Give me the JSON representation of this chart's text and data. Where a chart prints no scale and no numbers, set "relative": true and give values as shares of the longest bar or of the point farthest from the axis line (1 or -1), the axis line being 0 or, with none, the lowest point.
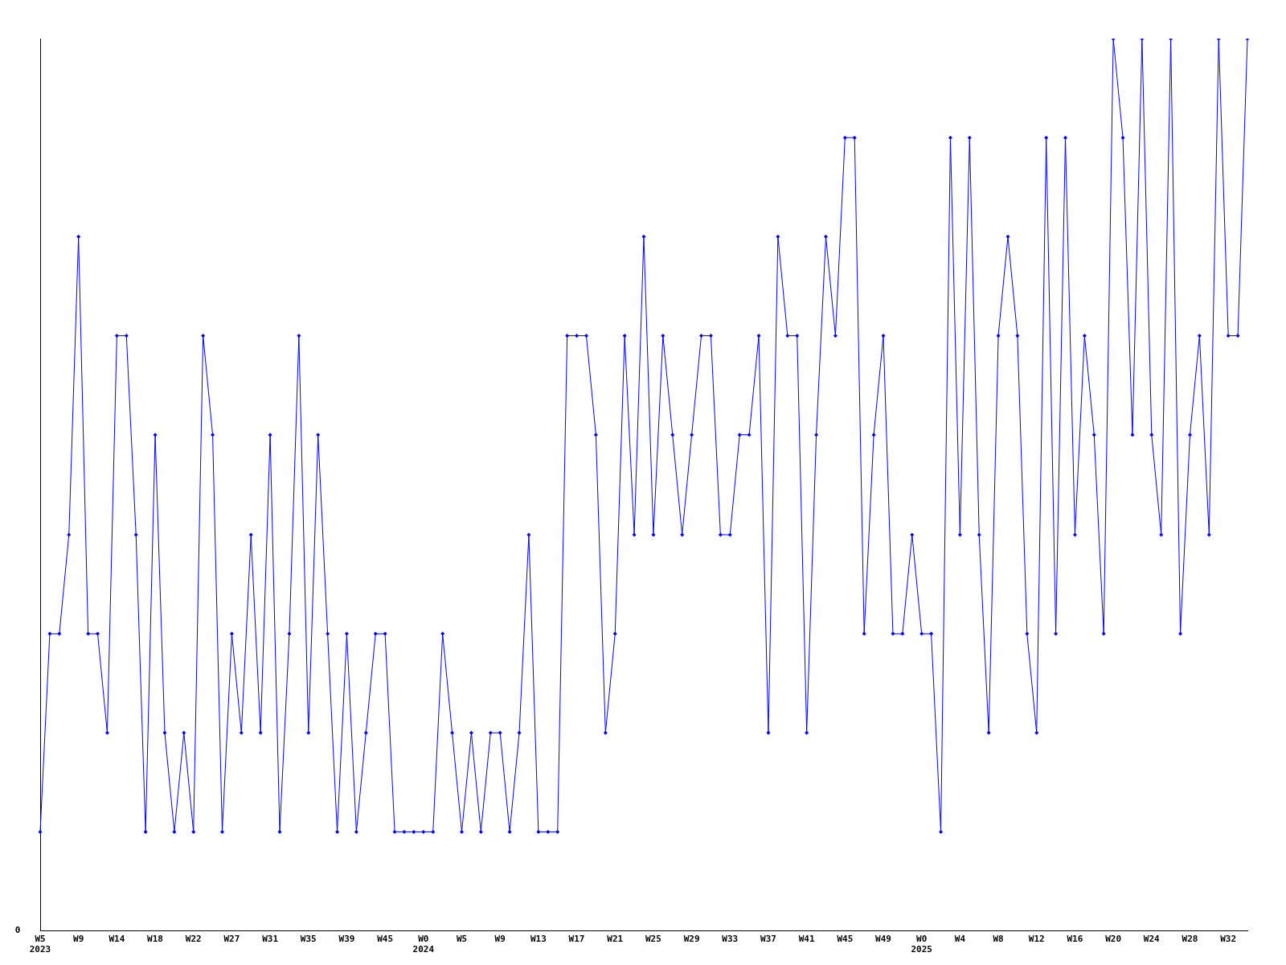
{
  "chart_data": {
    "type": "line",
    "relative": true,
    "legend": false,
    "grid": false,
    "marker": "diamond",
    "line_style": "solid",
    "annotations": [
      "0"
    ],
    "categories": [
      "W5\n2023",
      null,
      null,
      null,
      "W9",
      null,
      null,
      null,
      "W14",
      null,
      null,
      null,
      "W18",
      null,
      null,
      null,
      "W22",
      null,
      null,
      null,
      "W27",
      null,
      null,
      null,
      "W31",
      null,
      null,
      null,
      "W35",
      null,
      null,
      null,
      "W39",
      null,
      null,
      null,
      "W45",
      null,
      null,
      null,
      "W0\n2024",
      null,
      null,
      null,
      "W5",
      null,
      null,
      null,
      "W9",
      null,
      null,
      null,
      "W13",
      null,
      null,
      null,
      "W17",
      null,
      null,
      null,
      "W21",
      null,
      null,
      null,
      "W25",
      null,
      null,
      null,
      "W29",
      null,
      null,
      null,
      "W33",
      null,
      null,
      null,
      "W37",
      null,
      null,
      null,
      "W41",
      null,
      null,
      null,
      "W45",
      null,
      null,
      null,
      "W49",
      null,
      null,
      null,
      "W0\n2025",
      null,
      null,
      null,
      "W4",
      null,
      null,
      null,
      "W8",
      null,
      null,
      null,
      "W12",
      null,
      null,
      null,
      "W16",
      null,
      null,
      null,
      "W20",
      null,
      null,
      null,
      "W24",
      null,
      null,
      null,
      "W28",
      null,
      null,
      null,
      "W32",
      null,
      null
    ],
    "series": [
      {
        "color": "#0000ff",
        "values": [
          0.111,
          0.333,
          0.333,
          0.444,
          0.778,
          0.333,
          0.333,
          0.222,
          0.667,
          0.667,
          0.444,
          0.111,
          0.556,
          0.222,
          0.111,
          0.222,
          0.111,
          0.667,
          0.556,
          0.111,
          0.333,
          0.222,
          0.444,
          0.222,
          0.556,
          0.111,
          0.333,
          0.667,
          0.222,
          0.556,
          0.333,
          0.111,
          0.333,
          0.111,
          0.222,
          0.333,
          0.333,
          0.111,
          0.111,
          0.111,
          0.111,
          0.111,
          0.333,
          0.222,
          0.111,
          0.222,
          0.111,
          0.222,
          0.222,
          0.111,
          0.222,
          0.444,
          0.111,
          0.111,
          0.111,
          0.667,
          0.667,
          0.667,
          0.556,
          0.222,
          0.333,
          0.667,
          0.444,
          0.778,
          0.444,
          0.667,
          0.556,
          0.444,
          0.556,
          0.667,
          0.667,
          0.444,
          0.444,
          0.556,
          0.556,
          0.667,
          0.222,
          0.778,
          0.667,
          0.667,
          0.222,
          0.556,
          0.778,
          0.667,
          0.889,
          0.889,
          0.333,
          0.556,
          0.667,
          0.333,
          0.333,
          0.444,
          0.333,
          0.333,
          0.111,
          0.889,
          0.444,
          0.889,
          0.444,
          0.222,
          0.667,
          0.778,
          0.667,
          0.333,
          0.222,
          0.889,
          0.333,
          0.889,
          0.444,
          0.667,
          0.556,
          0.333,
          1,
          0.889,
          0.556,
          1,
          0.556,
          0.444,
          1,
          0.333,
          0.556,
          0.667,
          0.444,
          1,
          0.667,
          0.667,
          1
        ]
      }
    ]
  }
}
